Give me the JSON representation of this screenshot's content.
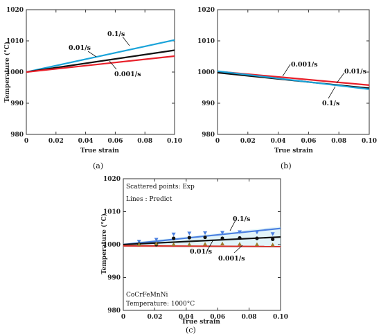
{
  "chart_data": [
    {
      "type": "line",
      "panel_label": "(a)",
      "xlabel": "True strain",
      "ylabel": "Temperature (°C)",
      "xlim": [
        0,
        0.1
      ],
      "ylim": [
        980,
        1020
      ],
      "xticks": [
        "0",
        "0.02",
        "0.04",
        "0.06",
        "0.08",
        "0.10"
      ],
      "yticks": [
        "980",
        "990",
        "1000",
        "1010",
        "1020"
      ],
      "series": [
        {
          "name": "0.1/s",
          "color": "#1aa3d9",
          "x": [
            0,
            0.1
          ],
          "y": [
            1000,
            1010.3
          ]
        },
        {
          "name": "0.01/s",
          "color": "#111111",
          "x": [
            0,
            0.1
          ],
          "y": [
            1000,
            1007.0
          ]
        },
        {
          "name": "0.001/s",
          "color": "#e8202a",
          "x": [
            0,
            0.1
          ],
          "y": [
            1000,
            1005.1
          ]
        }
      ]
    },
    {
      "type": "line",
      "panel_label": "(b)",
      "xlabel": "True strain",
      "ylabel": "",
      "xlim": [
        0,
        0.1
      ],
      "ylim": [
        980,
        1020
      ],
      "xticks": [
        "0",
        "0.02",
        "0.04",
        "0.06",
        "0.08",
        "0.10"
      ],
      "yticks": [
        "980",
        "990",
        "1000",
        "1010",
        "1020"
      ],
      "series": [
        {
          "name": "0.001/s",
          "color": "#e8202a",
          "x": [
            0,
            0.1
          ],
          "y": [
            1000.2,
            995.8
          ]
        },
        {
          "name": "0.01/s",
          "color": "#111111",
          "x": [
            0,
            0.1
          ],
          "y": [
            999.8,
            994.8
          ]
        },
        {
          "name": "0.1/s",
          "color": "#1aa3d9",
          "x": [
            0,
            0.1
          ],
          "y": [
            1000.3,
            994.5
          ]
        }
      ]
    },
    {
      "type": "line",
      "panel_label": "(c)",
      "xlabel": "True strain",
      "ylabel": "Temperature (°C)",
      "xlim": [
        0,
        0.1
      ],
      "ylim": [
        980,
        1020
      ],
      "xticks": [
        "0",
        "0.02",
        "0.04",
        "0.06",
        "0.08",
        "0.10"
      ],
      "yticks": [
        "980",
        "990",
        "1000",
        "1010",
        "1020"
      ],
      "annotations": [
        "Scattered points: Exp",
        "Lines : Predict",
        "CoCrFeMnNi",
        "Temperature: 1000°C"
      ],
      "series": [
        {
          "name": "0.1/s",
          "color": "#4a7fe0",
          "x": [
            0,
            0.1
          ],
          "y": [
            1000,
            1004.9
          ]
        },
        {
          "name": "0.01/s",
          "color": "#111111",
          "x": [
            0,
            0.1
          ],
          "y": [
            1000,
            1002.3
          ]
        },
        {
          "name": "0.001/s",
          "color": "#d9332b",
          "x": [
            0,
            0.1
          ],
          "y": [
            999.6,
            999.4
          ]
        }
      ],
      "points": [
        {
          "series": "0.1/s",
          "color": "#4a7fe0",
          "marker": "triangle-down",
          "x": [
            0.01,
            0.021,
            0.032,
            0.042,
            0.052,
            0.063,
            0.074,
            0.085,
            0.095
          ],
          "y": [
            1000.9,
            1001.5,
            1003.1,
            1003.4,
            1003.5,
            1003.6,
            1003.8,
            1003.7,
            1003.2
          ]
        },
        {
          "series": "0.01/s",
          "color": "#111111",
          "marker": "circle",
          "x": [
            0.01,
            0.021,
            0.032,
            0.042,
            0.052,
            0.063,
            0.074,
            0.085,
            0.095
          ],
          "y": [
            1000.1,
            1000.0,
            1001.9,
            1002.1,
            1002.2,
            1001.9,
            1002.0,
            1001.9,
            1001.6
          ]
        },
        {
          "series": "0.001/s",
          "color": "#9b7a2e",
          "marker": "triangle-up",
          "x": [
            0.01,
            0.021,
            0.032,
            0.042,
            0.052,
            0.063,
            0.074,
            0.085,
            0.095
          ],
          "y": [
            1000.1,
            1000.3,
            1000.1,
            1000.1,
            1000.2,
            1000.3,
            1000.2,
            1000.1,
            1000.0
          ]
        }
      ]
    }
  ]
}
